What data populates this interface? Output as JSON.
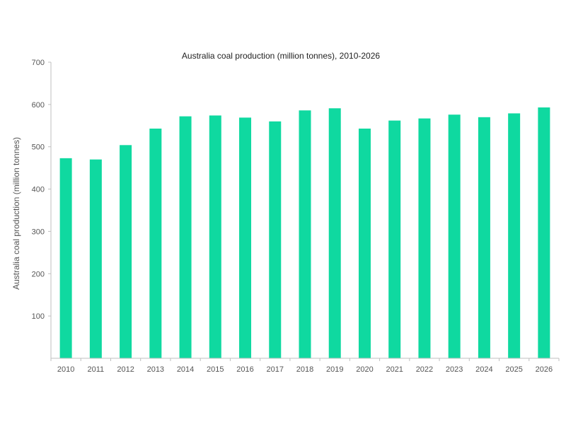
{
  "chart_data": {
    "type": "bar",
    "title": "Australia coal production (million tonnes), 2010-2026",
    "xlabel": "",
    "ylabel": "Australia coal production (million tonnes)",
    "categories": [
      "2010",
      "2011",
      "2012",
      "2013",
      "2014",
      "2015",
      "2016",
      "2017",
      "2018",
      "2019",
      "2020",
      "2021",
      "2022",
      "2023",
      "2024",
      "2025",
      "2026"
    ],
    "values": [
      473,
      470,
      504,
      543,
      572,
      574,
      569,
      560,
      586,
      591,
      543,
      562,
      567,
      576,
      570,
      579,
      593
    ],
    "ylim": [
      0,
      700
    ],
    "yticks": [
      "100",
      "200",
      "300",
      "400",
      "500",
      "600",
      "700"
    ],
    "grid": false,
    "legend": "none",
    "bar_color": "#0fd9a0",
    "axis_color": "#bfbfbf"
  }
}
